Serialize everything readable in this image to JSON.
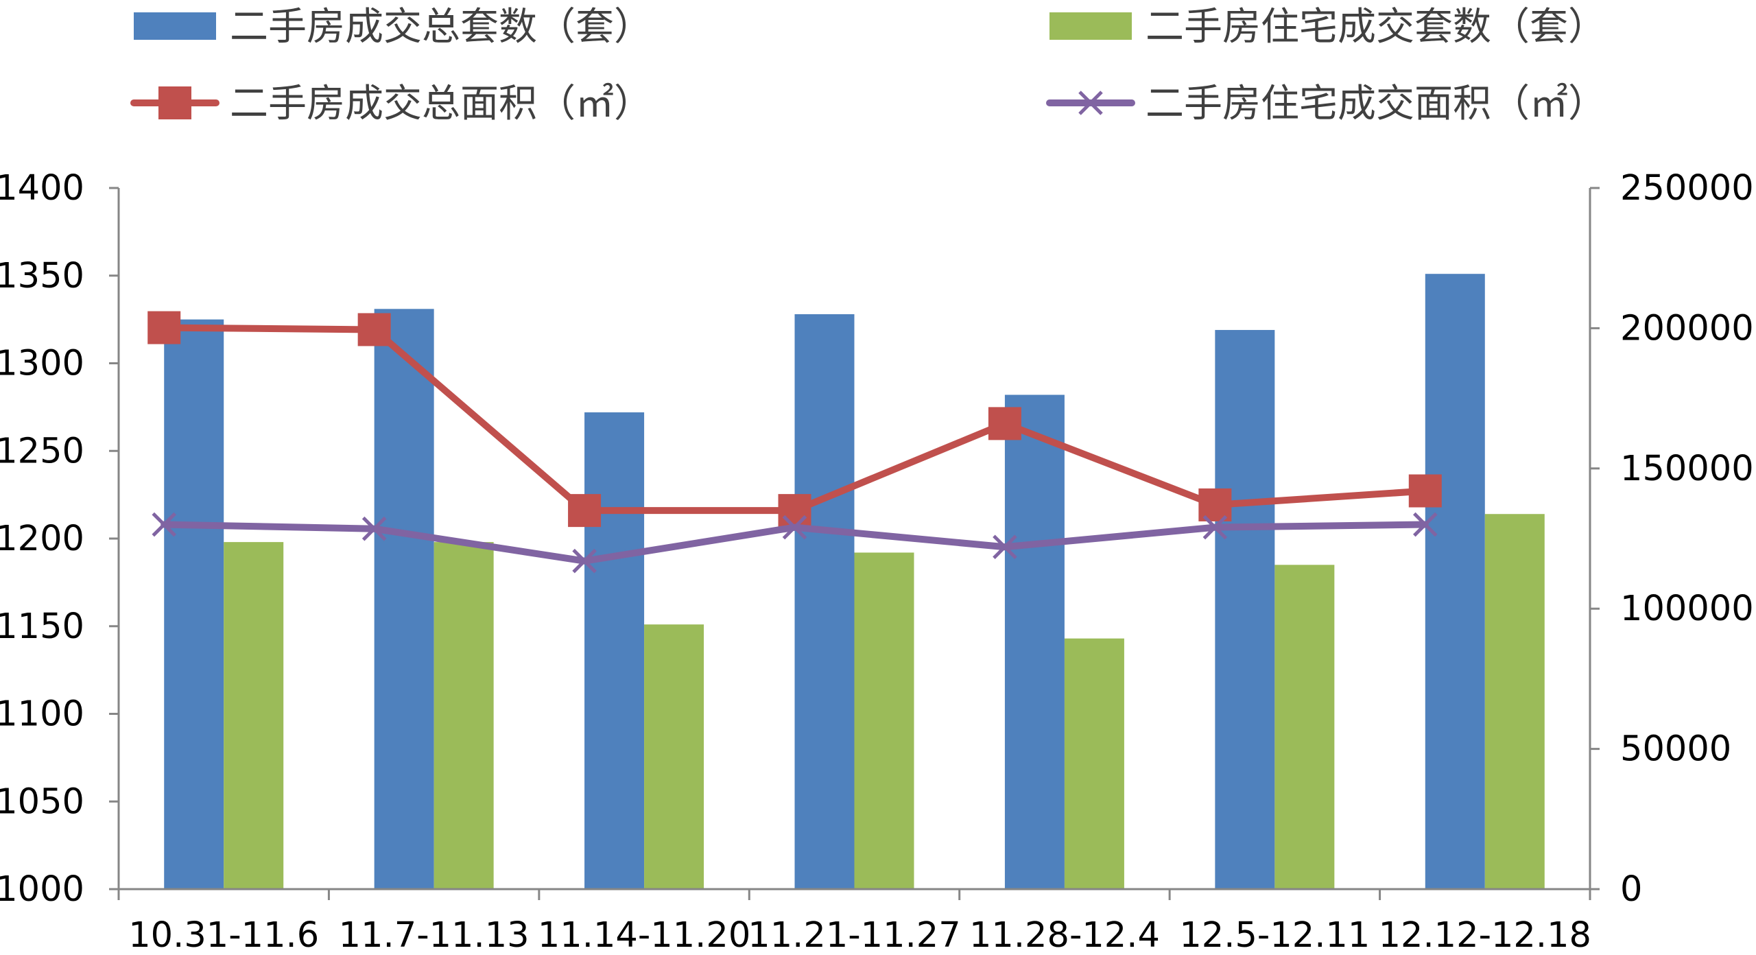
{
  "chart_data": {
    "type": "bar",
    "categories": [
      "10.31-11.6",
      "11.7-11.13",
      "11.14-11.20",
      "11.21-11.27",
      "11.28-12.4",
      "12.5-12.11",
      "12.12-12.18"
    ],
    "series": [
      {
        "name": "二手房成交总套数（套）",
        "type": "bar",
        "axis": "left",
        "color": "#4F81BD",
        "values": [
          1325,
          1331,
          1272,
          1328,
          1282,
          1319,
          1351
        ]
      },
      {
        "name": "二手房住宅成交套数（套）",
        "type": "bar",
        "axis": "left",
        "color": "#9BBB59",
        "values": [
          1198,
          1198,
          1151,
          1192,
          1143,
          1185,
          1214
        ]
      },
      {
        "name": "二手房成交总面积（㎡）",
        "type": "line",
        "axis": "right",
        "color": "#C0504D",
        "marker": "square",
        "values": [
          200200,
          199500,
          135000,
          135000,
          166000,
          137000,
          142000
        ]
      },
      {
        "name": "二手房住宅成交面积（㎡）",
        "type": "line",
        "axis": "right",
        "color": "#8064A2",
        "marker": "x",
        "values": [
          130000,
          128500,
          117000,
          129000,
          122000,
          129000,
          130000
        ]
      }
    ],
    "y_left": {
      "range": [
        1000,
        1400
      ],
      "ticks": [
        1000,
        1050,
        1100,
        1150,
        1200,
        1250,
        1300,
        1350,
        1400
      ]
    },
    "y_right": {
      "range": [
        0,
        250000
      ],
      "ticks": [
        0,
        50000,
        100000,
        150000,
        200000,
        250000
      ]
    },
    "grid": false,
    "legend_position": "top"
  }
}
